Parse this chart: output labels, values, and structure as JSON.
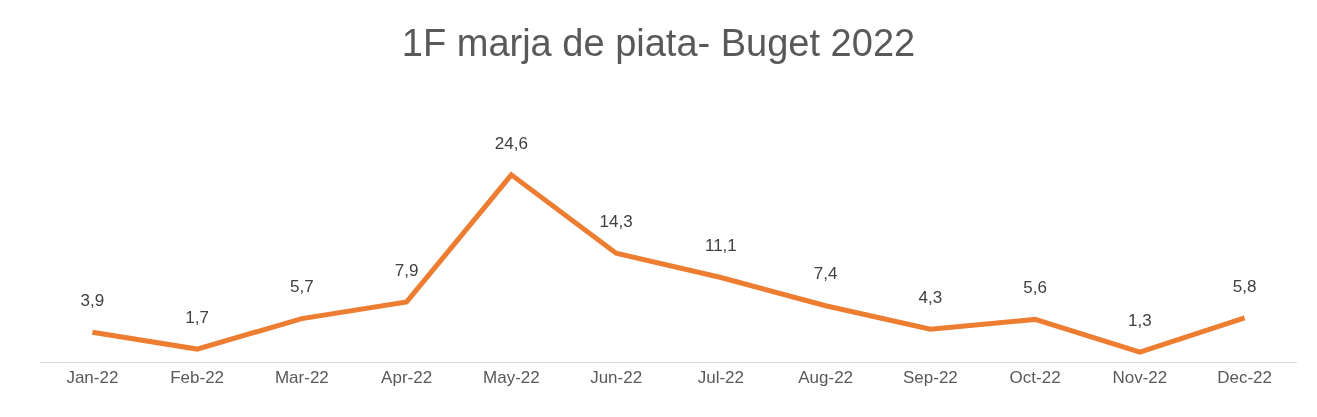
{
  "chart_data": {
    "type": "line",
    "title": "1F marja de piata- Buget 2022",
    "categories": [
      "Jan-22",
      "Feb-22",
      "Mar-22",
      "Apr-22",
      "May-22",
      "Jun-22",
      "Jul-22",
      "Aug-22",
      "Sep-22",
      "Oct-22",
      "Nov-22",
      "Dec-22"
    ],
    "values": [
      3.9,
      1.7,
      5.7,
      7.9,
      24.6,
      14.3,
      11.1,
      7.4,
      4.3,
      5.6,
      1.3,
      5.8
    ],
    "value_labels": [
      "3,9",
      "1,7",
      "5,7",
      "7,9",
      "24,6",
      "14,3",
      "11,1",
      "7,4",
      "4,3",
      "5,6",
      "1,3",
      "5,8"
    ],
    "color": "#ed7d31",
    "grid": false,
    "marker": "none",
    "line_style": "solid",
    "tick_labels": "x"
  }
}
